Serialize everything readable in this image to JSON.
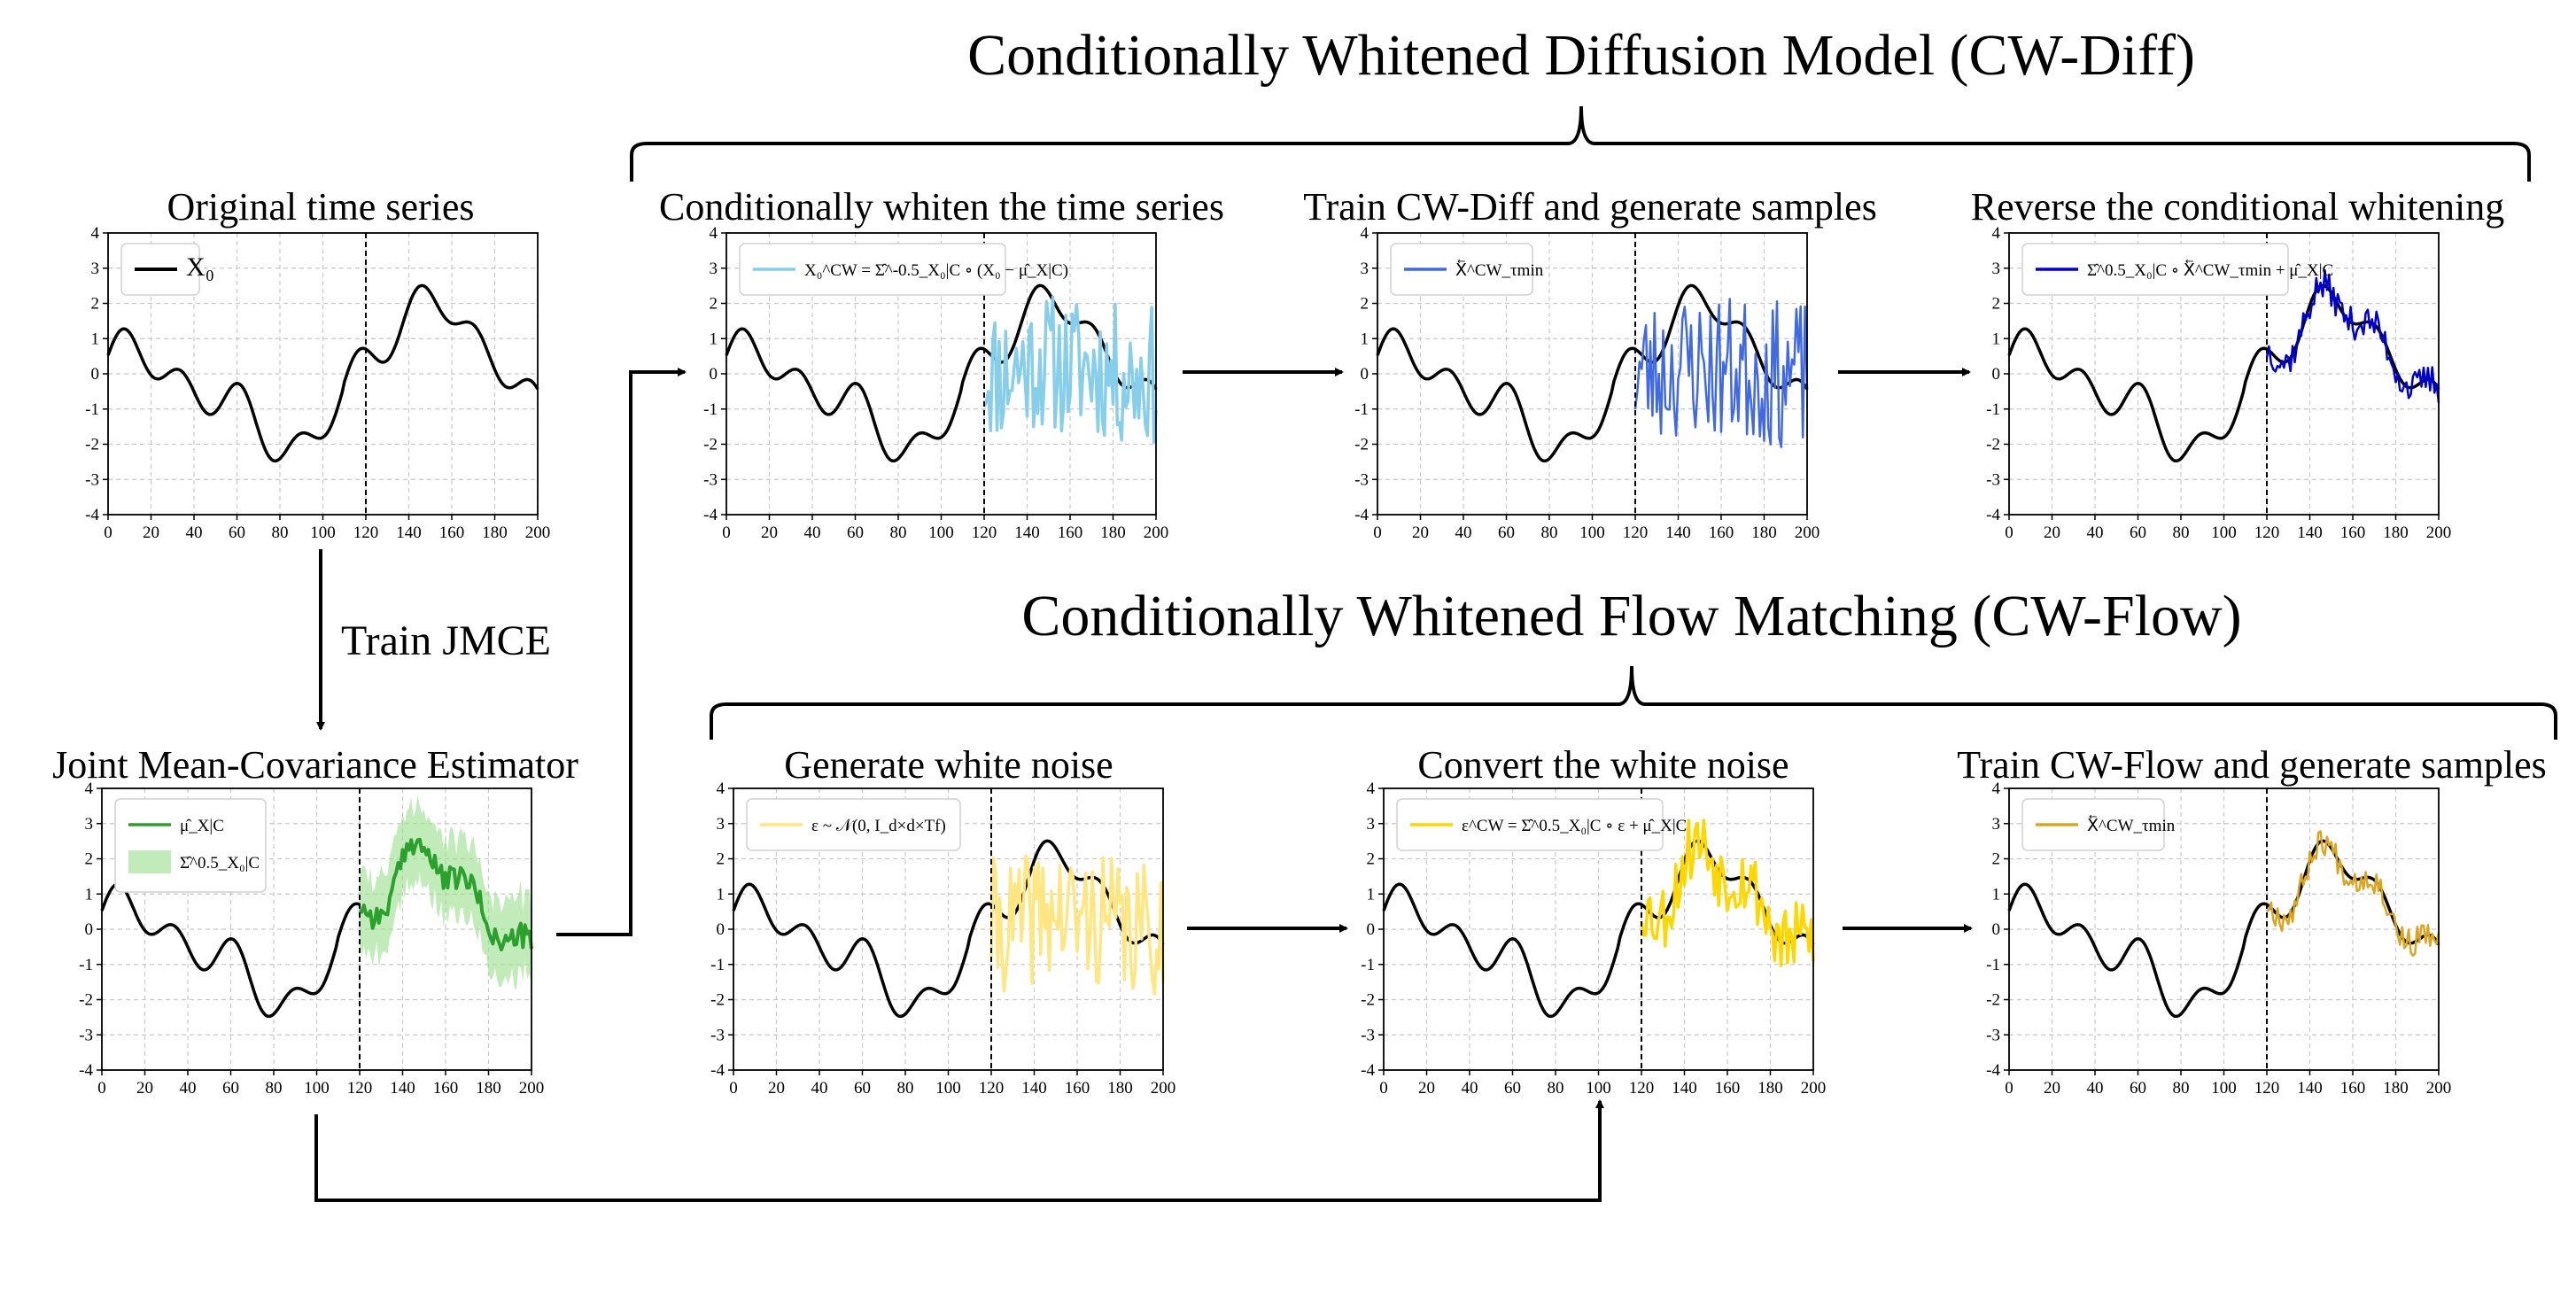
{
  "titles": {
    "cw_diff": "Conditionally Whitened Diffusion Model (CW-Diff)",
    "cw_flow": "Conditionally Whitened Flow Matching (CW-Flow)"
  },
  "arrow_labels": {
    "train_jmce": "Train JMCE"
  },
  "colors": {
    "black": "#000000",
    "green": "#2ca02c",
    "green_band": "#98df8a",
    "light_blue": "#87ceeb",
    "mid_blue": "#4169e1",
    "dark_blue": "#0000cd",
    "light_yellow": "#ffe680",
    "gold": "#ffd700",
    "goldenrod": "#daa520",
    "grid": "#c8c8c8"
  },
  "axes": {
    "x_ticks": [
      "0",
      "20",
      "40",
      "60",
      "80",
      "100",
      "120",
      "140",
      "160",
      "180",
      "200"
    ],
    "y_ticks": [
      "4",
      "3",
      "2",
      "1",
      "0",
      "-1",
      "-2",
      "-3",
      "-4"
    ],
    "xlim": [
      0,
      200
    ],
    "ylim": [
      -4,
      4
    ],
    "split_x": 120
  },
  "panels": [
    {
      "id": "original",
      "title": "Original time series",
      "legend": "X₀",
      "legend_color": "#000000",
      "overlay": "none"
    },
    {
      "id": "whiten",
      "title": "Conditionally whiten the time series",
      "legend": "X₀^CW = Σ̂^-0.5_X₀|C ∘ (X₀ − μ̂_X|C)",
      "legend_color": "#87ceeb",
      "overlay": "noise_light_blue"
    },
    {
      "id": "train_diff",
      "title": "Train CW-Diff and generate samples",
      "legend": "X⃖^CW_τmin",
      "legend_color": "#4169e1",
      "overlay": "noise_mid_blue"
    },
    {
      "id": "reverse",
      "title": "Reverse the conditional whitening",
      "legend": "Σ̂^0.5_X₀|C ∘ X⃖^CW_τmin + μ̂_X|C",
      "legend_color": "#0000cd",
      "overlay": "follow_dark_blue"
    },
    {
      "id": "jmce",
      "title": "Joint Mean-Covariance Estimator",
      "legend": "μ̂_X|C",
      "legend2": "Σ̂^0.5_X₀|C",
      "legend_color": "#2ca02c",
      "overlay": "mean_band"
    },
    {
      "id": "white_noise",
      "title": "Generate white noise",
      "legend": "ε ~ 𝒩(0, I_d×d×Tf)",
      "legend_color": "#ffe680",
      "overlay": "noise_light_yellow"
    },
    {
      "id": "convert",
      "title": "Convert the white noise",
      "legend": "ε^CW = Σ̂^0.5_X₀|C ∘ ε + μ̂_X|C",
      "legend_color": "#ffd700",
      "overlay": "follow_gold"
    },
    {
      "id": "train_flow",
      "title": "Train CW-Flow and generate samples",
      "legend": "X⃖^CW_τmin",
      "legend_color": "#daa520",
      "overlay": "follow_goldenrod"
    }
  ]
}
